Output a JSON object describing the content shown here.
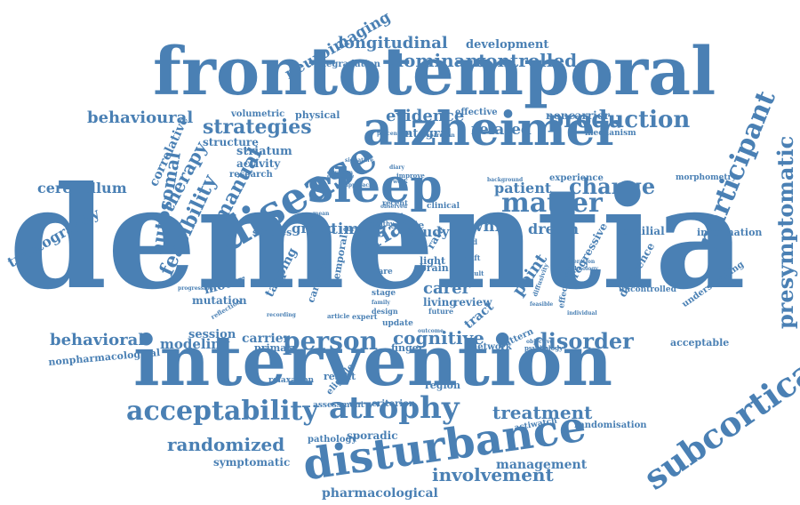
{
  "colors": {
    "word": "#4a80b4",
    "background": "#ffffff"
  },
  "words": [
    "dementia",
    "intervention",
    "frontotemporal",
    "alzheimer",
    "sleep",
    "disease",
    "disturbance",
    "atrophy",
    "acceptability",
    "subcortical",
    "person",
    "matter",
    "disorder",
    "cognitive",
    "treatment",
    "randomized",
    "involvement",
    "participant",
    "presymptomatic",
    "longitudinal",
    "dominant",
    "controlled",
    "strategies",
    "production",
    "evidence",
    "related",
    "change",
    "patient",
    "white",
    "dream",
    "familial",
    "information",
    "behavioural",
    "behavioral",
    "cerebellum",
    "tractography",
    "autosomal",
    "feasibility",
    "manual",
    "neuroimaging",
    "development",
    "degradation",
    "noncarrier",
    "mechanism",
    "volumetric",
    "physical",
    "structure",
    "striatum",
    "activity",
    "research",
    "integral",
    "timing",
    "group",
    "studies",
    "study",
    "trial",
    "single",
    "carer",
    "living",
    "review",
    "motor",
    "mutation",
    "session",
    "carrier",
    "modeling",
    "primary",
    "nonpharmacological",
    "management",
    "pharmacological",
    "symptomatic",
    "pathology",
    "sporadic",
    "randomisation",
    "actiwatch",
    "network",
    "finger",
    "region",
    "relaxation",
    "result",
    "eligible",
    "assessment",
    "criterion",
    "acceptable",
    "point",
    "difference",
    "progressive",
    "uncontrolled",
    "understanding",
    "morphometry",
    "experience",
    "effective",
    "therapy",
    "correlative",
    "tapping",
    "brain",
    "light",
    "care",
    "stage",
    "design",
    "future",
    "update",
    "expert",
    "article",
    "recording",
    "progression",
    "effectiveness",
    "psychology",
    "objective",
    "pattern",
    "outcome",
    "improve",
    "recent",
    "clinical",
    "blind",
    "shift",
    "percentage",
    "separation",
    "background",
    "healthy",
    "current",
    "observed",
    "family",
    "temporal",
    "caregiver",
    "alteration",
    "technology",
    "feasible",
    "diffusivity",
    "reflection",
    "individual",
    "signature",
    "duration",
    "graduate",
    "mean",
    "tract",
    "adult",
    "rate",
    "diary",
    "work",
    "approach"
  ]
}
